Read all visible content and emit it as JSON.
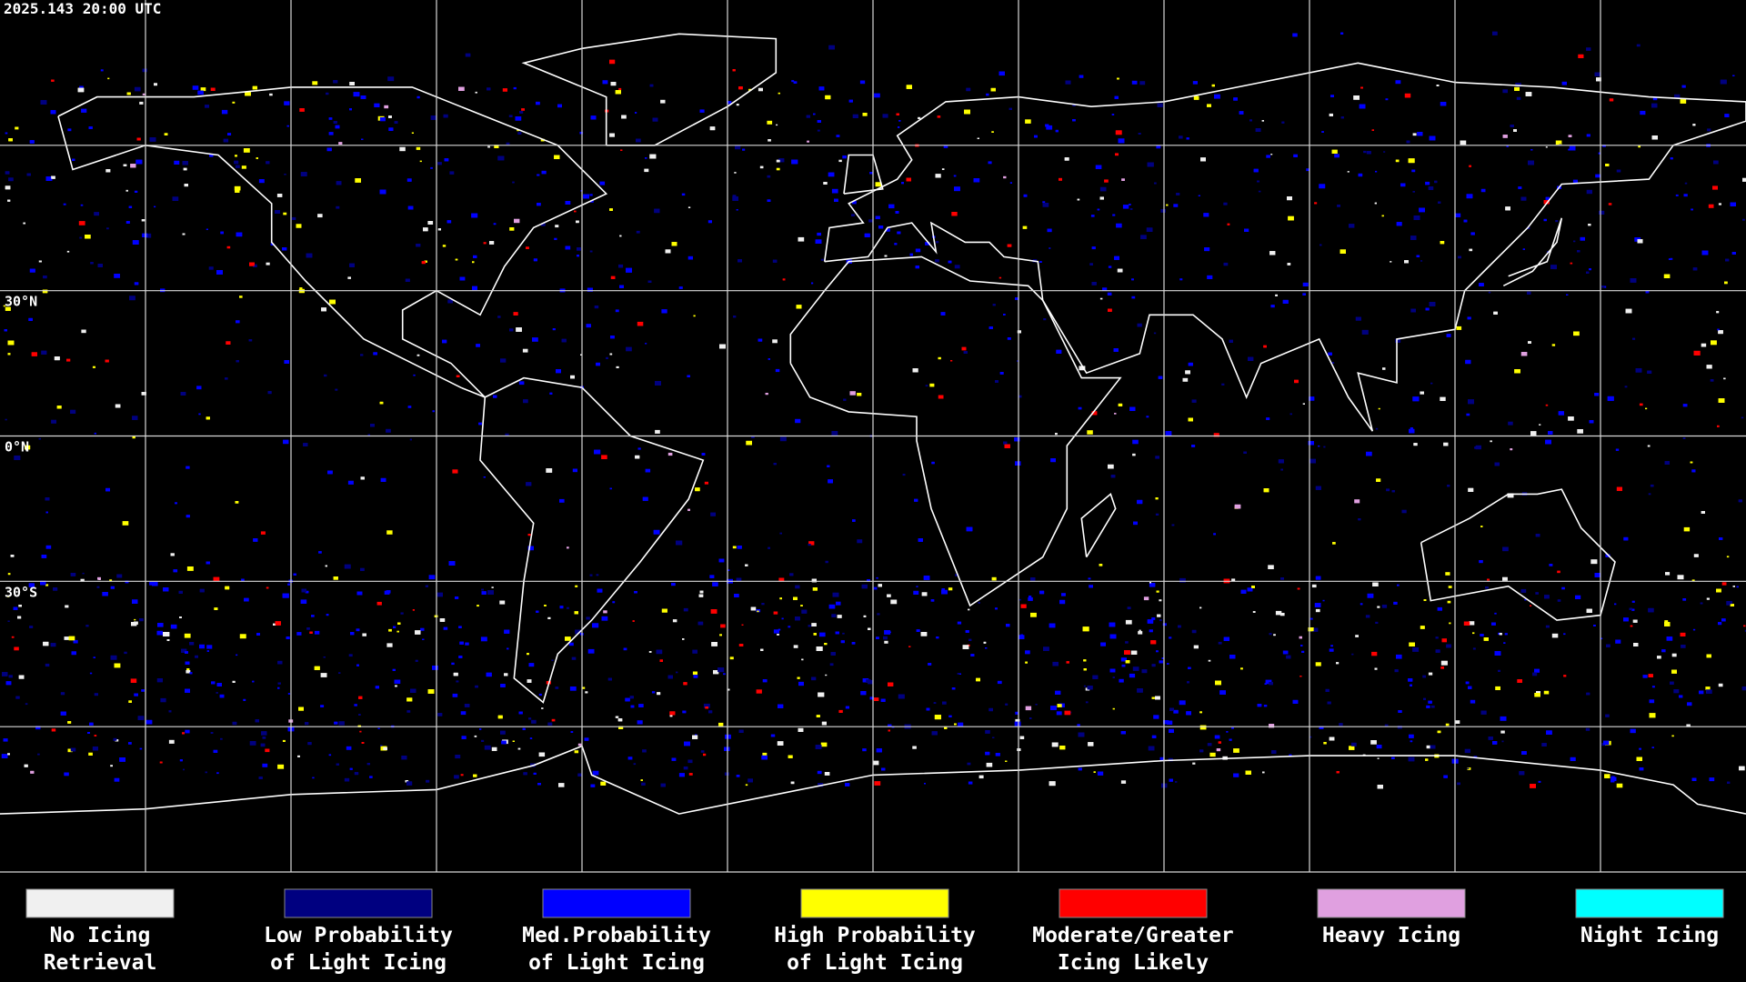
{
  "timestamp": "2025.143 20:00 UTC",
  "latitude_labels": [
    "30°N",
    "0°N",
    "30°S"
  ],
  "legend": [
    {
      "lines": [
        "No Icing",
        "Retrieval"
      ],
      "color": "#f0f0f0"
    },
    {
      "lines": [
        "Low Probability",
        "of Light Icing"
      ],
      "color": "#000080"
    },
    {
      "lines": [
        "Med.Probability",
        "of Light Icing"
      ],
      "color": "#0000ff"
    },
    {
      "lines": [
        "High Probability",
        "of Light Icing"
      ],
      "color": "#ffff00"
    },
    {
      "lines": [
        "Moderate/Greater",
        "Icing Likely"
      ],
      "color": "#ff0000"
    },
    {
      "lines": [
        "Heavy Icing"
      ],
      "color": "#e0a0e0"
    },
    {
      "lines": [
        "Night Icing"
      ],
      "color": "#00ffff"
    }
  ]
}
